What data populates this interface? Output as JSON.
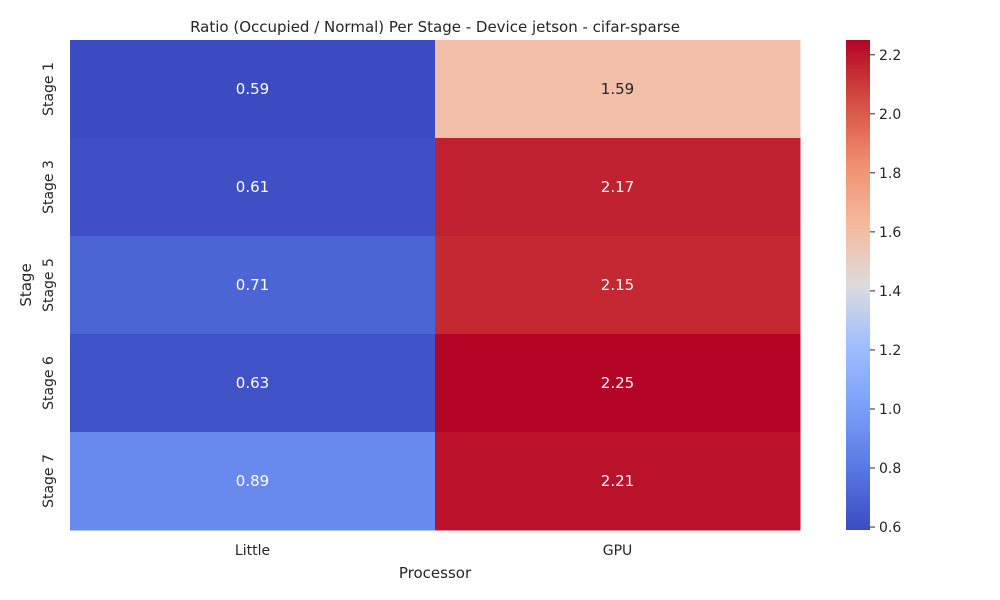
{
  "chart_data": {
    "type": "heatmap",
    "title": "Ratio (Occupied / Normal) Per Stage - Device jetson - cifar-sparse",
    "xlabel": "Processor",
    "ylabel": "Stage",
    "x_categories": [
      "Little",
      "GPU"
    ],
    "y_categories": [
      "Stage 1",
      "Stage 3",
      "Stage 5",
      "Stage 6",
      "Stage 7"
    ],
    "values": [
      [
        0.59,
        1.59
      ],
      [
        0.61,
        2.17
      ],
      [
        0.71,
        2.15
      ],
      [
        0.63,
        2.25
      ],
      [
        0.89,
        2.21
      ]
    ],
    "value_labels": [
      [
        "0.59",
        "1.59"
      ],
      [
        "0.61",
        "2.17"
      ],
      [
        "0.71",
        "2.15"
      ],
      [
        "0.63",
        "2.25"
      ],
      [
        "0.89",
        "2.21"
      ]
    ],
    "colormap": "coolwarm",
    "colorbar": {
      "min": 0.59,
      "max": 2.25,
      "ticks": [
        "0.6",
        "0.8",
        "1.0",
        "1.2",
        "1.4",
        "1.6",
        "1.8",
        "2.0",
        "2.2"
      ]
    }
  }
}
